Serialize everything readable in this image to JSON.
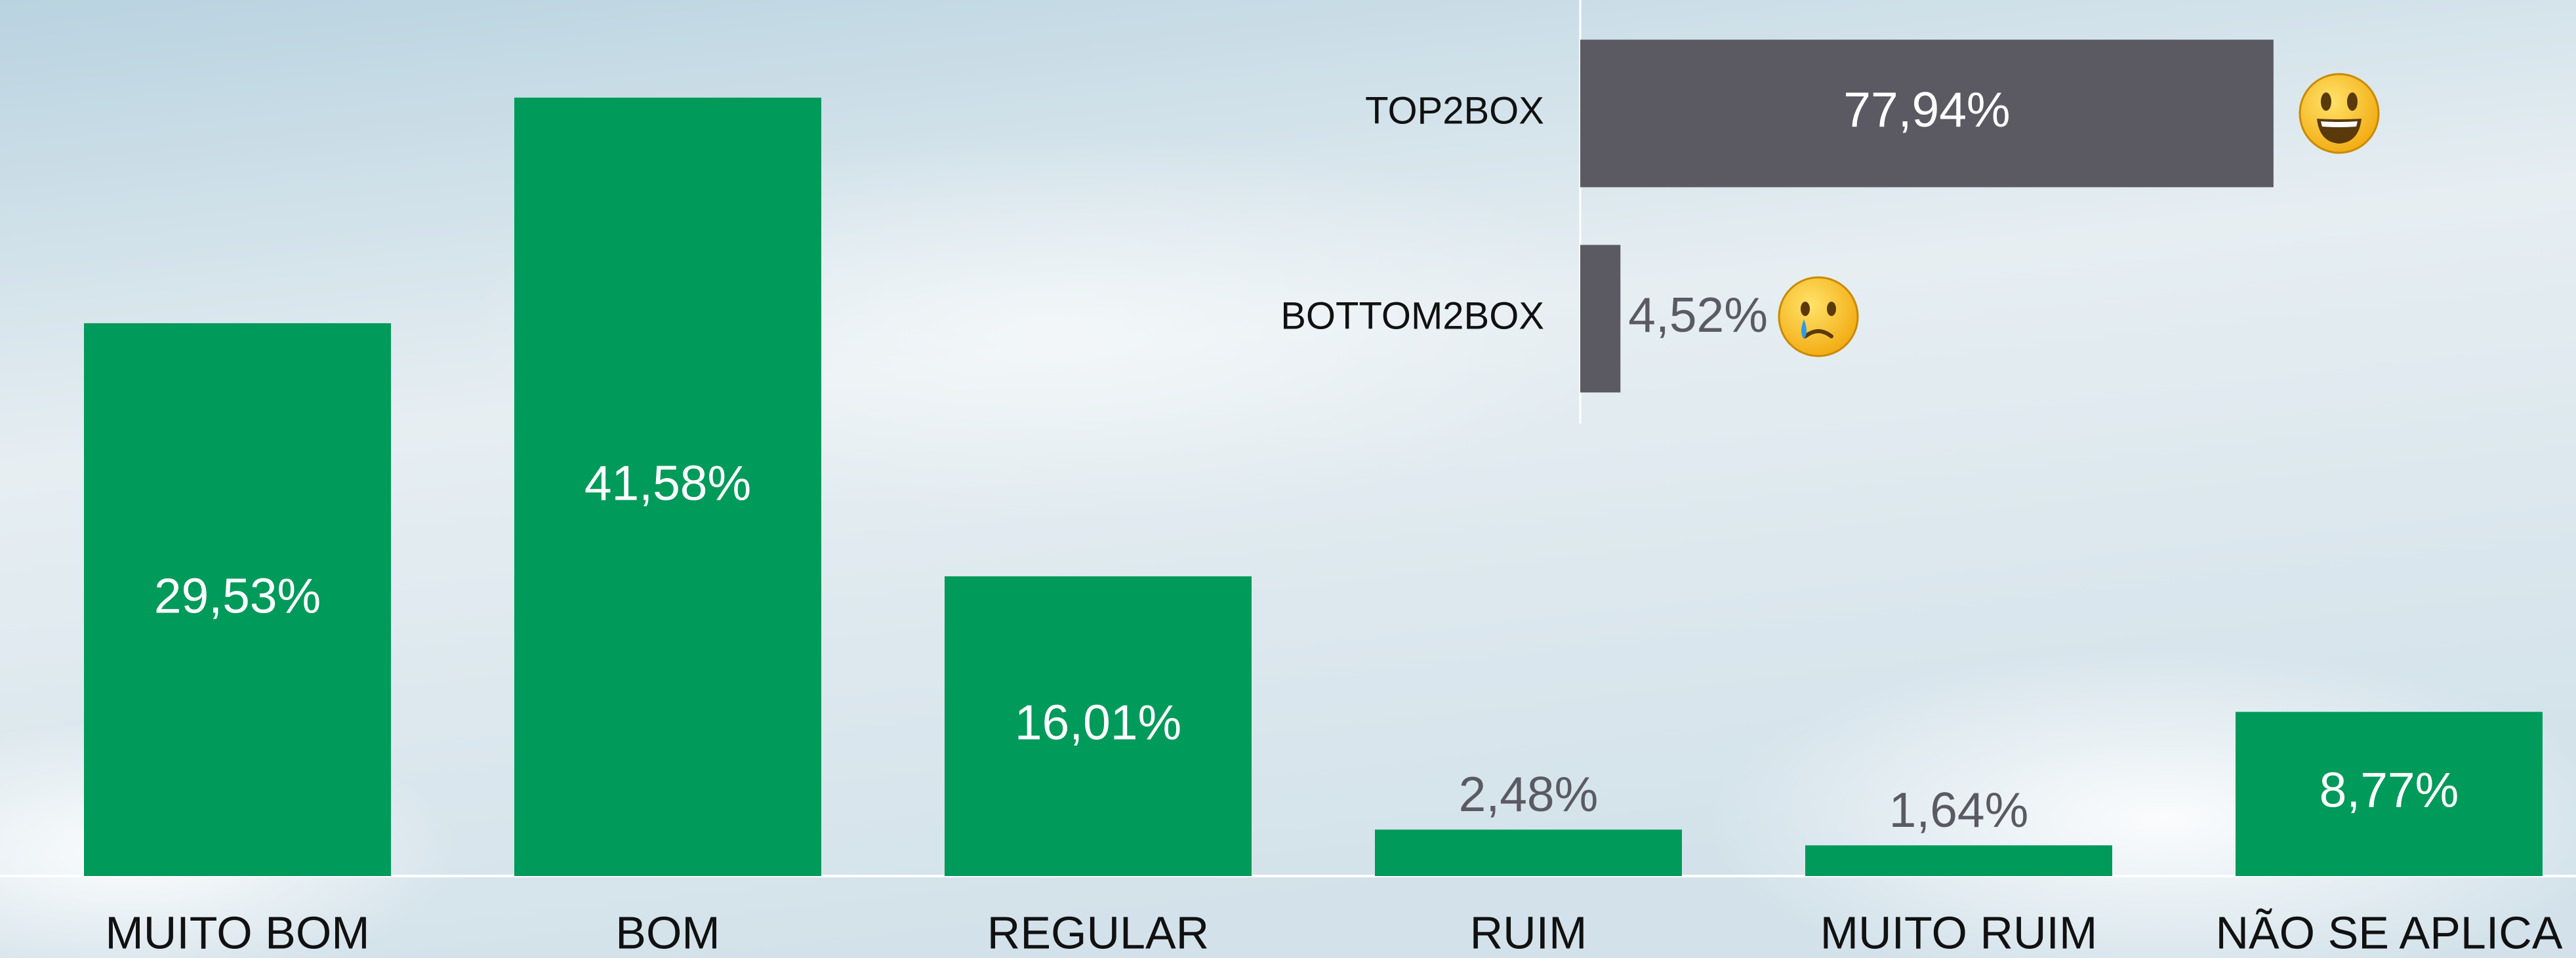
{
  "chart_data": [
    {
      "type": "bar",
      "categories": [
        "MUITO BOM",
        "BOM",
        "REGULAR",
        "RUIM",
        "MUITO RUIM",
        "NÃO SE APLICA"
      ],
      "values": [
        29.53,
        41.58,
        16.01,
        2.48,
        1.64,
        8.77
      ],
      "value_labels": [
        "29,53%",
        "41,58%",
        "16,01%",
        "2,48%",
        "1,64%",
        "8,77%"
      ],
      "color": "#009a5a"
    },
    {
      "type": "hbar",
      "categories": [
        "TOP2BOX",
        "BOTTOM2BOX"
      ],
      "values": [
        77.94,
        4.52
      ],
      "value_labels": [
        "77,94%",
        "4,52%"
      ],
      "color": "#5b5a63"
    }
  ]
}
